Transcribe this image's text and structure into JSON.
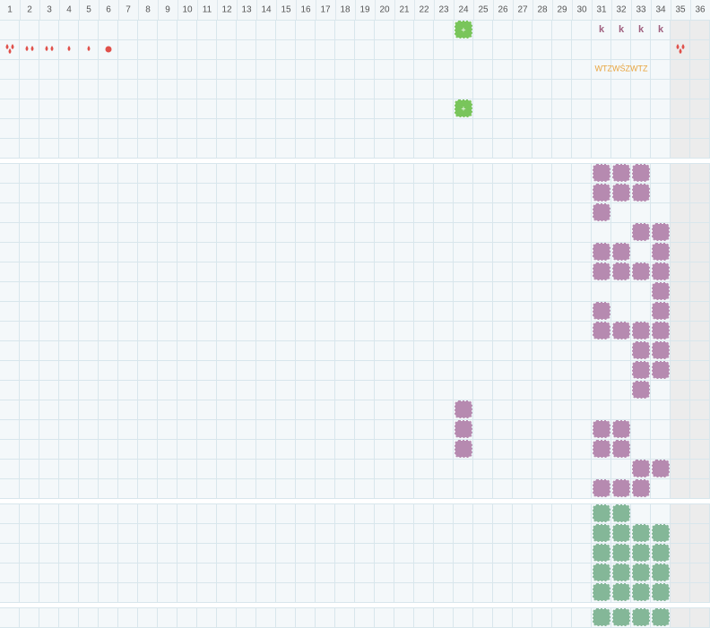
{
  "header": {
    "columns": [
      1,
      2,
      3,
      4,
      5,
      6,
      7,
      8,
      9,
      10,
      11,
      12,
      13,
      14,
      15,
      16,
      17,
      18,
      19,
      20,
      21,
      22,
      23,
      24,
      25,
      26,
      27,
      28,
      29,
      30,
      31,
      32,
      33,
      34,
      35,
      36
    ]
  },
  "markers": {
    "k": [
      "k",
      "k",
      "k",
      "k"
    ],
    "shift_label": "WTZWŚZWTZ"
  }
}
